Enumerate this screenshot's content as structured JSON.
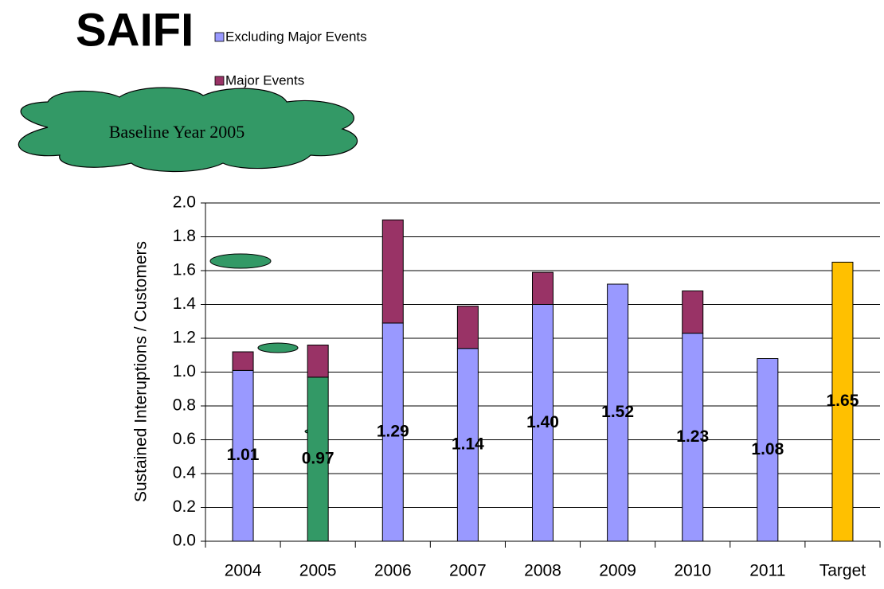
{
  "chart_data": {
    "type": "bar",
    "stacked": true,
    "title": "SAIFI",
    "annotation": "Baseline Year 2005",
    "y_label": "Sustained Interuptions / Customers",
    "categories": [
      "2004",
      "2005",
      "2006",
      "2007",
      "2008",
      "2009",
      "2010",
      "2011",
      "Target"
    ],
    "series": [
      {
        "name": "Excluding Major Events",
        "color": "#9999ff",
        "colors": [
          "#9999ff",
          "#339966",
          "#9999ff",
          "#9999ff",
          "#9999ff",
          "#9999ff",
          "#9999ff",
          "#9999ff",
          "#ffc000"
        ],
        "values": [
          1.01,
          0.97,
          1.29,
          1.14,
          1.4,
          1.52,
          1.23,
          1.08,
          1.65
        ],
        "value_labels": [
          "1.01",
          "0.97",
          "1.29",
          "1.14",
          "1.40",
          "1.52",
          "1.23",
          "1.08",
          "1.65"
        ]
      },
      {
        "name": "Major Events",
        "color": "#993366",
        "values": [
          0.11,
          0.19,
          0.61,
          0.25,
          0.19,
          null,
          0.25,
          null,
          null
        ]
      }
    ],
    "ylim": [
      0,
      2
    ],
    "yticks": [
      {
        "value": 0,
        "label": "0.0"
      },
      {
        "value": 0.2,
        "label": "0.2"
      },
      {
        "value": 0.4,
        "label": "0.4"
      },
      {
        "value": 0.6,
        "label": "0.6"
      },
      {
        "value": 0.8,
        "label": "0.8"
      },
      {
        "value": 1,
        "label": "1.0"
      },
      {
        "value": 1.2,
        "label": "1.2"
      },
      {
        "value": 1.4,
        "label": "1.4"
      },
      {
        "value": 1.6,
        "label": "1.6"
      },
      {
        "value": 1.8,
        "label": "1.8"
      },
      {
        "value": 2,
        "label": "2.0"
      }
    ],
    "grid": true
  }
}
